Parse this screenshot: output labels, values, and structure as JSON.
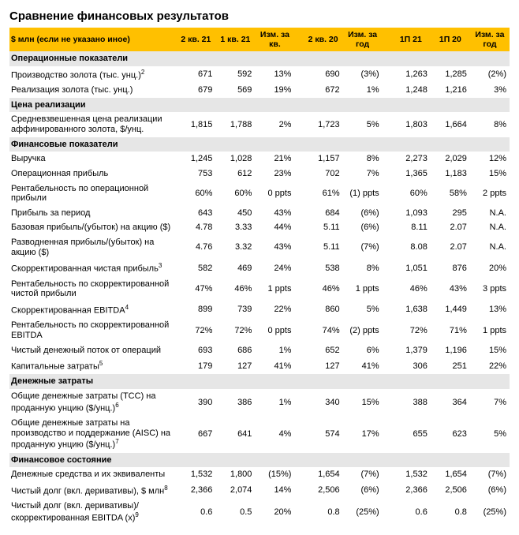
{
  "title": "Сравнение финансовых результатов",
  "header": {
    "unit": "$ млн (если не указано иное)",
    "cols": [
      "2 кв. 21",
      "1 кв. 21",
      "Изм. за кв.",
      "2 кв. 20",
      "Изм. за год",
      "1П 21",
      "1П 20",
      "Изм. за год"
    ]
  },
  "sections": [
    {
      "name": "Операционные показатели",
      "rows": [
        {
          "label": "Производство золота (тыс. унц.)",
          "sup": "2",
          "v": [
            "671",
            "592",
            "13%",
            "690",
            "(3%)",
            "1,263",
            "1,285",
            "(2%)"
          ]
        },
        {
          "label": "Реализация золота (тыс. унц.)",
          "v": [
            "679",
            "569",
            "19%",
            "672",
            "1%",
            "1,248",
            "1,216",
            "3%"
          ]
        }
      ]
    },
    {
      "name": "Цена реализации",
      "rows": [
        {
          "label": "Средневзвешенная цена реализации аффинированного золота, $/унц.",
          "v": [
            "1,815",
            "1,788",
            "2%",
            "1,723",
            "5%",
            "1,803",
            "1,664",
            "8%"
          ]
        }
      ]
    },
    {
      "name": "Финансовые показатели",
      "rows": [
        {
          "label": "Выручка",
          "v": [
            "1,245",
            "1,028",
            "21%",
            "1,157",
            "8%",
            "2,273",
            "2,029",
            "12%"
          ]
        },
        {
          "label": "Операционная прибыль",
          "v": [
            "753",
            "612",
            "23%",
            "702",
            "7%",
            "1,365",
            "1,183",
            "15%"
          ]
        },
        {
          "label": "Рентабельность по операционной прибыли",
          "v": [
            "60%",
            "60%",
            "0 ppts",
            "61%",
            "(1) ppts",
            "60%",
            "58%",
            "2 ppts"
          ]
        },
        {
          "label": "Прибыль за период",
          "v": [
            "643",
            "450",
            "43%",
            "684",
            "(6%)",
            "1,093",
            "295",
            "N.A."
          ]
        },
        {
          "label": "Базовая прибыль/(убыток) на акцию ($)",
          "v": [
            "4.78",
            "3.33",
            "44%",
            "5.11",
            "(6%)",
            "8.11",
            "2.07",
            "N.A."
          ]
        },
        {
          "label": "Разводненная прибыль/(убыток) на акцию ($)",
          "v": [
            "4.76",
            "3.32",
            "43%",
            "5.11",
            "(7%)",
            "8.08",
            "2.07",
            "N.A."
          ]
        },
        {
          "label": "Скорректированная чистая прибыль",
          "sup": "3",
          "v": [
            "582",
            "469",
            "24%",
            "538",
            "8%",
            "1,051",
            "876",
            "20%"
          ]
        },
        {
          "label": "Рентабельность по скорректированной чистой прибыли",
          "v": [
            "47%",
            "46%",
            "1 ppts",
            "46%",
            "1 ppts",
            "46%",
            "43%",
            "3 ppts"
          ]
        },
        {
          "label": "Скорректированная EBITDA",
          "sup": "4",
          "v": [
            "899",
            "739",
            "22%",
            "860",
            "5%",
            "1,638",
            "1,449",
            "13%"
          ]
        },
        {
          "label": "Рентабельность по скорректированной EBITDA",
          "v": [
            "72%",
            "72%",
            "0 ppts",
            "74%",
            "(2) ppts",
            "72%",
            "71%",
            "1 ppts"
          ]
        },
        {
          "label": "Чистый денежный поток от операций",
          "v": [
            "693",
            "686",
            "1%",
            "652",
            "6%",
            "1,379",
            "1,196",
            "15%"
          ]
        },
        {
          "label": "Капитальные затраты",
          "sup": "5",
          "v": [
            "179",
            "127",
            "41%",
            "127",
            "41%",
            "306",
            "251",
            "22%"
          ]
        }
      ]
    },
    {
      "name": "Денежные затраты",
      "rows": [
        {
          "label": "Общие денежные затраты (ТСС) на проданную унцию ($/унц.)",
          "sup": "6",
          "v": [
            "390",
            "386",
            "1%",
            "340",
            "15%",
            "388",
            "364",
            "7%"
          ]
        },
        {
          "label": "Общие денежные затраты на производство и поддержание (AISC) на проданную унцию ($/унц.)",
          "sup": "7",
          "v": [
            "667",
            "641",
            "4%",
            "574",
            "17%",
            "655",
            "623",
            "5%"
          ]
        }
      ]
    },
    {
      "name": "Финансовое состояние",
      "rows": [
        {
          "label": "Денежные средства и их эквиваленты",
          "v": [
            "1,532",
            "1,800",
            "(15%)",
            "1,654",
            "(7%)",
            "1,532",
            "1,654",
            "(7%)"
          ]
        },
        {
          "label": "Чистый долг (вкл. деривативы), $ млн",
          "sup": "8",
          "v": [
            "2,366",
            "2,074",
            "14%",
            "2,506",
            "(6%)",
            "2,366",
            "2,506",
            "(6%)"
          ]
        },
        {
          "label": "Чистый долг (вкл. деривативы)/ скорректированная EBITDA (x)",
          "sup": "9",
          "v": [
            "0.6",
            "0.5",
            "20%",
            "0.8",
            "(25%)",
            "0.6",
            "0.8",
            "(25%)"
          ]
        }
      ]
    }
  ]
}
